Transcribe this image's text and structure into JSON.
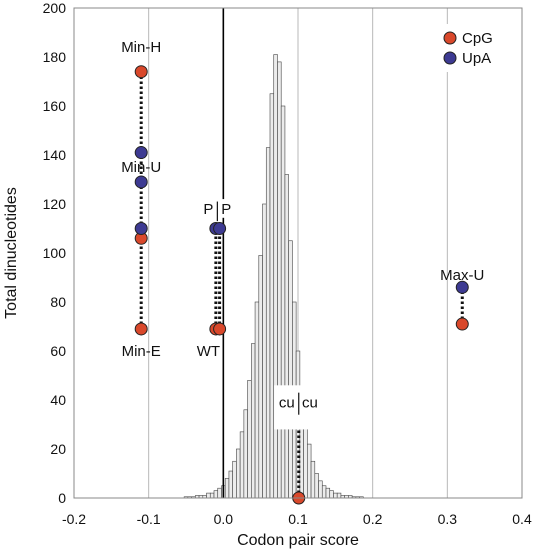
{
  "chart_data": {
    "type": "scatter",
    "title": "",
    "xlabel": "Codon pair score",
    "ylabel": "Total dinucleotides",
    "xlim": [
      -0.2,
      0.4
    ],
    "ylim": [
      0,
      200
    ],
    "x_ticks": [
      "-0.2",
      "-0.1",
      "0.0",
      "0.1",
      "0.2",
      "0.3",
      "0.4"
    ],
    "y_ticks": [
      "0",
      "20",
      "40",
      "60",
      "80",
      "100",
      "120",
      "140",
      "160",
      "180",
      "200"
    ],
    "grid": "vertical",
    "legend_position": "top-right",
    "colors": {
      "CpG": "#d9482b",
      "UpA": "#3d3a92",
      "bar_fill": "#ececec",
      "bar_stroke": "#444444"
    },
    "series": [
      {
        "name": "CpG",
        "points": [
          {
            "x": -0.11,
            "y": 174
          },
          {
            "x": -0.11,
            "y": 106
          },
          {
            "x": -0.11,
            "y": 69
          },
          {
            "x": -0.01,
            "y": 69
          },
          {
            "x": -0.005,
            "y": 69
          },
          {
            "x": 0.32,
            "y": 71
          },
          {
            "x": 0.101,
            "y": 0
          }
        ]
      },
      {
        "name": "UpA",
        "points": [
          {
            "x": -0.11,
            "y": 141
          },
          {
            "x": -0.11,
            "y": 129
          },
          {
            "x": -0.11,
            "y": 110
          },
          {
            "x": -0.01,
            "y": 110
          },
          {
            "x": -0.005,
            "y": 110
          },
          {
            "x": 0.32,
            "y": 86
          },
          {
            "x": 0.101,
            "y": 33
          }
        ]
      }
    ],
    "connectors": [
      {
        "x": -0.11,
        "y1": 69,
        "y2": 174
      },
      {
        "x": -0.01,
        "y1": 69,
        "y2": 110
      },
      {
        "x": -0.005,
        "y1": 69,
        "y2": 110
      },
      {
        "x": 0.32,
        "y1": 71,
        "y2": 86
      },
      {
        "x": 0.101,
        "y1": 0,
        "y2": 33
      }
    ],
    "reference_line_x": 0,
    "point_labels": [
      {
        "text": "Min-H",
        "x": -0.11,
        "y": 182,
        "anchor": "middle"
      },
      {
        "text": "Min-U",
        "x": -0.11,
        "y": 133,
        "anchor": "middle"
      },
      {
        "text": "Min-E",
        "x": -0.11,
        "y": 58,
        "anchor": "middle"
      },
      {
        "text": "P",
        "x": -0.02,
        "y": 116,
        "anchor": "middle"
      },
      {
        "text": "P",
        "x": 0.004,
        "y": 116,
        "anchor": "middle"
      },
      {
        "text": "WT",
        "x": -0.02,
        "y": 58,
        "anchor": "middle"
      },
      {
        "text": "Max-U",
        "x": 0.32,
        "y": 89,
        "anchor": "middle"
      },
      {
        "text": "cu",
        "x": 0.085,
        "y": 37,
        "anchor": "middle"
      },
      {
        "text": "cu",
        "x": 0.116,
        "y": 37,
        "anchor": "middle"
      }
    ],
    "histogram": {
      "bin_width": 0.005,
      "bins": [
        {
          "x": -0.05,
          "y": 0.5
        },
        {
          "x": -0.045,
          "y": 0.5
        },
        {
          "x": -0.04,
          "y": 0.5
        },
        {
          "x": -0.035,
          "y": 1
        },
        {
          "x": -0.03,
          "y": 1
        },
        {
          "x": -0.025,
          "y": 1
        },
        {
          "x": -0.02,
          "y": 2
        },
        {
          "x": -0.015,
          "y": 2
        },
        {
          "x": -0.01,
          "y": 3
        },
        {
          "x": -0.005,
          "y": 4
        },
        {
          "x": 0.0,
          "y": 5
        },
        {
          "x": 0.005,
          "y": 8
        },
        {
          "x": 0.01,
          "y": 11
        },
        {
          "x": 0.015,
          "y": 15
        },
        {
          "x": 0.02,
          "y": 20
        },
        {
          "x": 0.025,
          "y": 27
        },
        {
          "x": 0.03,
          "y": 36
        },
        {
          "x": 0.035,
          "y": 48
        },
        {
          "x": 0.04,
          "y": 63
        },
        {
          "x": 0.045,
          "y": 80
        },
        {
          "x": 0.05,
          "y": 99
        },
        {
          "x": 0.055,
          "y": 120
        },
        {
          "x": 0.06,
          "y": 143
        },
        {
          "x": 0.065,
          "y": 165
        },
        {
          "x": 0.07,
          "y": 181
        },
        {
          "x": 0.075,
          "y": 178
        },
        {
          "x": 0.08,
          "y": 160
        },
        {
          "x": 0.085,
          "y": 132
        },
        {
          "x": 0.09,
          "y": 105
        },
        {
          "x": 0.095,
          "y": 80
        },
        {
          "x": 0.1,
          "y": 60
        },
        {
          "x": 0.105,
          "y": 44
        },
        {
          "x": 0.11,
          "y": 31
        },
        {
          "x": 0.115,
          "y": 22
        },
        {
          "x": 0.12,
          "y": 15
        },
        {
          "x": 0.125,
          "y": 10
        },
        {
          "x": 0.13,
          "y": 7
        },
        {
          "x": 0.135,
          "y": 5
        },
        {
          "x": 0.14,
          "y": 4
        },
        {
          "x": 0.145,
          "y": 3
        },
        {
          "x": 0.15,
          "y": 2
        },
        {
          "x": 0.155,
          "y": 2
        },
        {
          "x": 0.16,
          "y": 1
        },
        {
          "x": 0.165,
          "y": 1
        },
        {
          "x": 0.17,
          "y": 1
        },
        {
          "x": 0.175,
          "y": 0.5
        },
        {
          "x": 0.18,
          "y": 0.5
        },
        {
          "x": 0.185,
          "y": 0.5
        }
      ]
    }
  }
}
